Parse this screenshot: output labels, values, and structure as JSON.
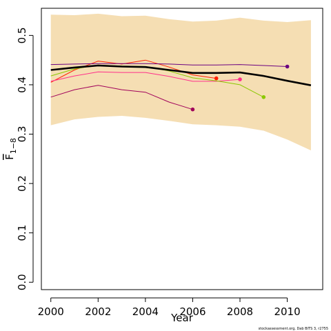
{
  "chart_data": {
    "type": "line",
    "xlabel": "Year",
    "ylabel": "F",
    "ylabel_subscript": "1−8",
    "xlim": [
      1999.6,
      2011.5
    ],
    "ylim": [
      -0.015,
      0.555
    ],
    "xticks": [
      2000,
      2002,
      2004,
      2006,
      2008,
      2010
    ],
    "yticks": [
      0.0,
      0.1,
      0.2,
      0.3,
      0.4,
      0.5
    ],
    "ytick_labels": [
      "0.0",
      "0.1",
      "0.2",
      "0.3",
      "0.4",
      "0.5"
    ],
    "grid": false,
    "band": {
      "color": "#F5DEB3",
      "x": [
        2000,
        2001,
        2002,
        2003,
        2004,
        2005,
        2006,
        2007,
        2008,
        2009,
        2010,
        2011
      ],
      "upper": [
        0.542,
        0.541,
        0.544,
        0.539,
        0.54,
        0.533,
        0.528,
        0.53,
        0.536,
        0.53,
        0.527,
        0.531
      ],
      "lower": [
        0.318,
        0.33,
        0.335,
        0.337,
        0.333,
        0.327,
        0.32,
        0.318,
        0.315,
        0.307,
        0.289,
        0.267
      ]
    },
    "main_line": {
      "color": "#000000",
      "x": [
        2000,
        2001,
        2002,
        2003,
        2004,
        2005,
        2006,
        2007,
        2008,
        2009,
        2010,
        2011
      ],
      "y": [
        0.43,
        0.435,
        0.439,
        0.437,
        0.436,
        0.43,
        0.424,
        0.424,
        0.425,
        0.418,
        0.408,
        0.399
      ]
    },
    "series": [
      {
        "color": "#A0005A",
        "end_marker": true,
        "x": [
          2000,
          2001,
          2002,
          2003,
          2004,
          2005,
          2006
        ],
        "y": [
          0.375,
          0.39,
          0.399,
          0.39,
          0.385,
          0.365,
          0.35
        ]
      },
      {
        "color": "#FF2000",
        "end_marker": true,
        "x": [
          2000,
          2001,
          2002,
          2003,
          2004,
          2005,
          2006,
          2007
        ],
        "y": [
          0.405,
          0.43,
          0.448,
          0.442,
          0.45,
          0.436,
          0.42,
          0.413
        ]
      },
      {
        "color": "#FF2E8A",
        "end_marker": true,
        "x": [
          2000,
          2001,
          2002,
          2003,
          2004,
          2005,
          2006,
          2007,
          2008
        ],
        "y": [
          0.407,
          0.418,
          0.426,
          0.425,
          0.425,
          0.417,
          0.407,
          0.407,
          0.411
        ]
      },
      {
        "color": "#8BC800",
        "end_marker": true,
        "x": [
          2000,
          2001,
          2002,
          2003,
          2004,
          2005,
          2006,
          2007,
          2008,
          2009
        ],
        "y": [
          0.418,
          0.432,
          0.44,
          0.438,
          0.437,
          0.428,
          0.414,
          0.408,
          0.4,
          0.375
        ]
      },
      {
        "color": "#6A0080",
        "end_marker": true,
        "x": [
          2000,
          2001,
          2002,
          2003,
          2004,
          2005,
          2006,
          2007,
          2008,
          2009,
          2010
        ],
        "y": [
          0.441,
          0.442,
          0.443,
          0.443,
          0.443,
          0.442,
          0.44,
          0.44,
          0.441,
          0.439,
          0.437
        ]
      }
    ],
    "credit": "stockassessment.org, Dab BITS 3, r2755"
  }
}
